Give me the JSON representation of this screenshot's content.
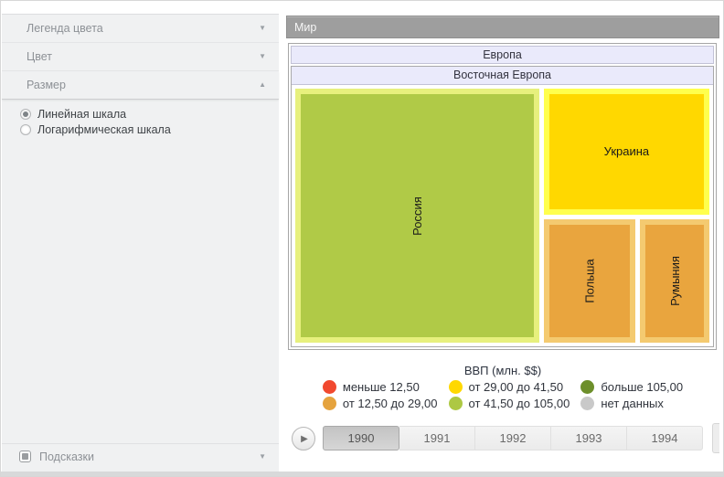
{
  "sidebar": {
    "sections": [
      {
        "label": "Легенда цвета",
        "state": "collapsed"
      },
      {
        "label": "Цвет",
        "state": "collapsed"
      },
      {
        "label": "Размер",
        "state": "expanded"
      }
    ],
    "size_options": [
      {
        "label": "Линейная шкала",
        "selected": true
      },
      {
        "label": "Логарифмическая шкала",
        "selected": false
      }
    ],
    "tooltips": {
      "label": "Подсказки",
      "checked": true
    }
  },
  "main": {
    "title": "Мир",
    "treemap": {
      "level1_header": "Европа",
      "level2_header": "Восточная Европа",
      "cells": [
        {
          "label": "Россия"
        },
        {
          "label": "Украина"
        },
        {
          "label": "Польша"
        },
        {
          "label": "Румыния"
        }
      ]
    },
    "legend": {
      "title": "ВВП (млн. $$)",
      "items": [
        {
          "label": "меньше 12,50",
          "color": "#f1492f"
        },
        {
          "label": "от 29,00 до 41,50",
          "color": "#ffd800"
        },
        {
          "label": "больше 105,00",
          "color": "#6d8f2b"
        },
        {
          "label": "от 12,50 до 29,00",
          "color": "#e5a33e"
        },
        {
          "label": "от 41,50 до 105,00",
          "color": "#adc843"
        },
        {
          "label": "нет данных",
          "color": "#c9c9c9"
        }
      ]
    },
    "timeline": {
      "years": [
        "1990",
        "1991",
        "1992",
        "1993",
        "1994"
      ],
      "selected": "1990"
    }
  },
  "icons": {
    "chevron_down": "▼",
    "chevron_up": "▲",
    "play": "▶"
  },
  "chart_data": {
    "type": "treemap",
    "title": "Мир",
    "hierarchy": [
      "Мир",
      "Европа",
      "Восточная Европа"
    ],
    "size_metric": "ВВП (млн. $$)",
    "year_shown": "1990",
    "nodes": [
      {
        "name": "Россия",
        "color_bin": "от 41,50 до 105,00",
        "color": "#b0ca47",
        "area_share_est": 0.56
      },
      {
        "name": "Украина",
        "color_bin": "от 29,00 до 41,50",
        "color": "#ffd800",
        "area_share_est": 0.19
      },
      {
        "name": "Польша",
        "color_bin": "от 12,50 до 29,00",
        "color": "#e9a53e",
        "area_share_est": 0.12
      },
      {
        "name": "Румыния",
        "color_bin": "от 12,50 до 29,00",
        "color": "#e9a53e",
        "area_share_est": 0.08
      }
    ],
    "legend_bins": [
      {
        "label": "меньше 12,50",
        "color": "#f1492f"
      },
      {
        "label": "от 12,50 до 29,00",
        "color": "#e5a33e"
      },
      {
        "label": "от 29,00 до 41,50",
        "color": "#ffd800"
      },
      {
        "label": "от 41,50 до 105,00",
        "color": "#adc843"
      },
      {
        "label": "больше 105,00",
        "color": "#6d8f2b"
      },
      {
        "label": "нет данных",
        "color": "#c9c9c9"
      }
    ],
    "time_axis": [
      "1990",
      "1991",
      "1992",
      "1993",
      "1994"
    ]
  }
}
